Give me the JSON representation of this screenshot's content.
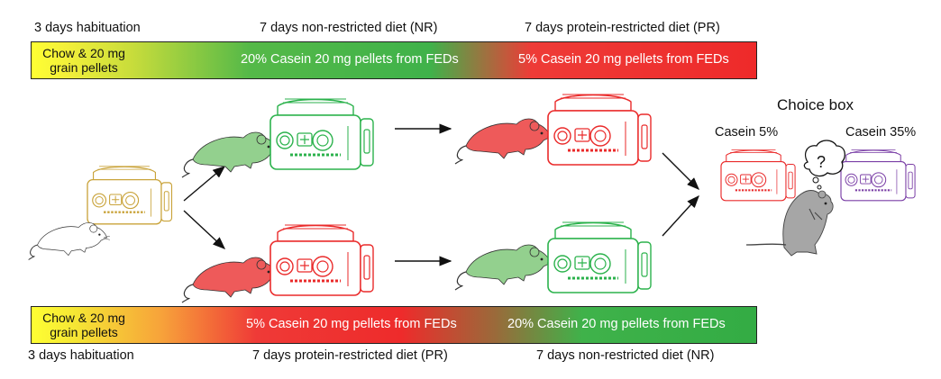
{
  "top_row": {
    "phase1": "3 days habituation",
    "phase2": "7 days non-restricted diet (NR)",
    "phase3": "7 days protein-restricted diet (PR)",
    "bar": {
      "chow_line1": "Chow & 20 mg",
      "chow_line2": "grain pellets",
      "mid": "20% Casein 20 mg pellets from FEDs",
      "end": "5% Casein 20 mg pellets from FEDs"
    }
  },
  "bottom_row": {
    "phase1": "3 days habituation",
    "phase2": "7 days protein-restricted diet (PR)",
    "phase3": "7 days non-restricted diet (NR)",
    "bar": {
      "chow_line1": "Chow & 20 mg",
      "chow_line2": "grain pellets",
      "mid": "5% Casein 20 mg pellets from FEDs",
      "end": "20% Casein 20 mg pellets from FEDs"
    }
  },
  "choice_box": {
    "title": "Choice box",
    "left_option": "Casein 5%",
    "right_option": "Casein 35%",
    "thought": "?"
  },
  "colors": {
    "habituation": "#c9a33a",
    "non_restricted": "#2bb24c",
    "protein_restricted": "#ea2a2a",
    "casein_35": "#7a3fa6",
    "grey_mouse": "#a6a6a6"
  }
}
